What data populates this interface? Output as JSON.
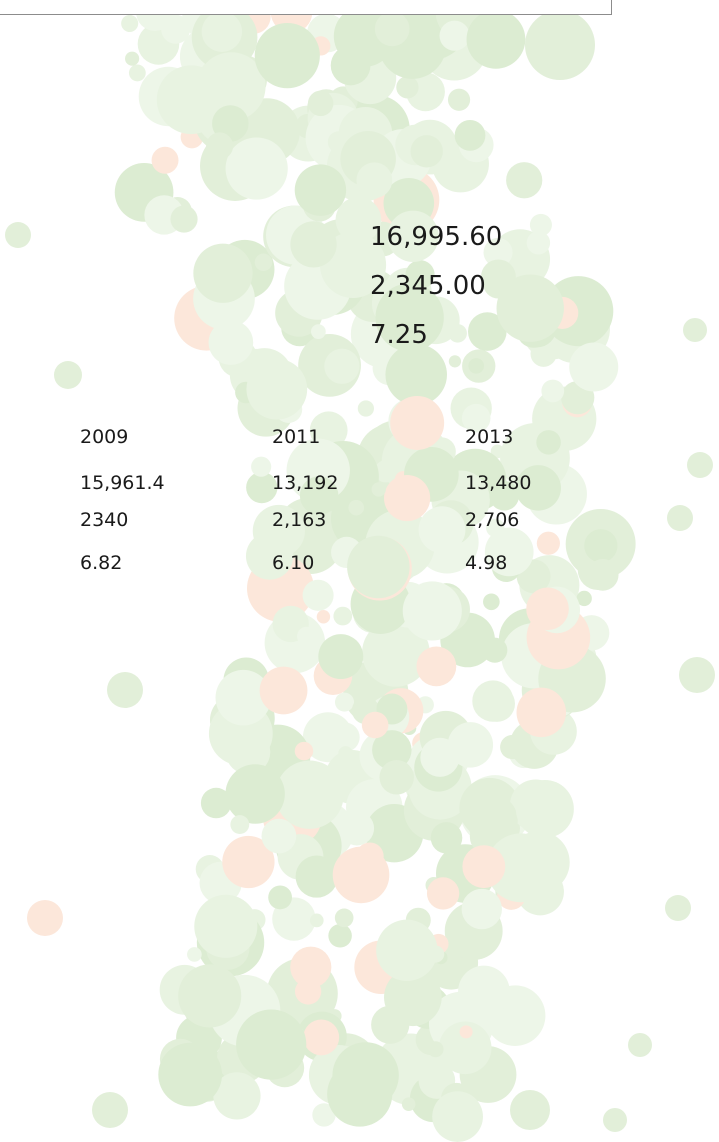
{
  "headline_values": [
    "16,995.60",
    "2,345.00",
    "7.25"
  ],
  "table": {
    "header": [
      "2009",
      "2011",
      "2013"
    ],
    "rows": [
      [
        "15,961.4",
        "13,192",
        "13,480"
      ],
      [
        "2340",
        "2,163",
        "2,706"
      ],
      [
        "6.82",
        "6.10",
        "4.98"
      ]
    ]
  }
}
